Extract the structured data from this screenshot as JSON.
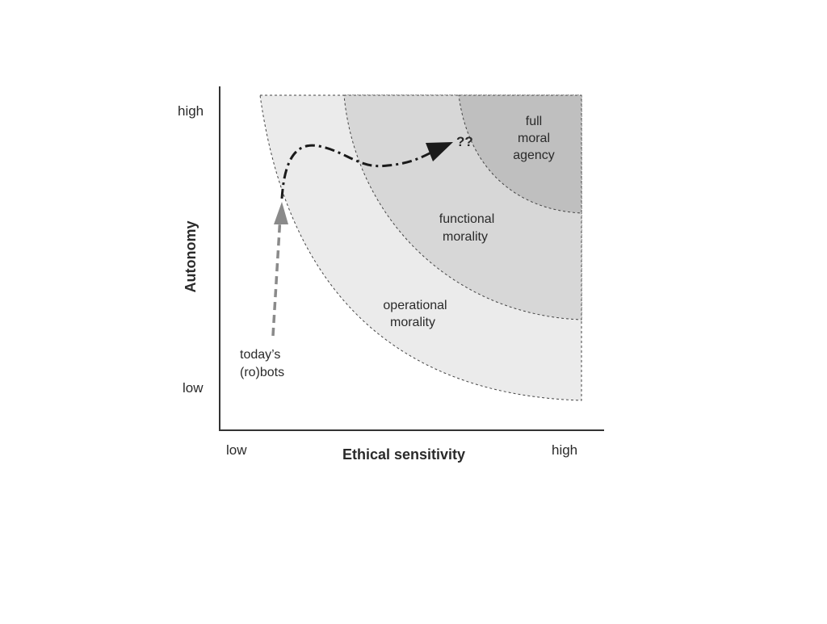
{
  "diagram": {
    "y_axis": {
      "label": "Autonomy",
      "high": "high",
      "low": "low"
    },
    "x_axis": {
      "label": "Ethical sensitivity",
      "low": "low",
      "high": "high"
    },
    "regions": {
      "operational": {
        "line1": "operational",
        "line2": "morality",
        "fill": "#ebebeb"
      },
      "functional": {
        "line1": "functional",
        "line2": "morality",
        "fill": "#d7d7d7"
      },
      "full": {
        "line1": "full",
        "line2": "moral",
        "line3": "agency",
        "fill": "#bfbfbf"
      }
    },
    "start_label": {
      "line1": "today’s",
      "line2": "(ro)bots"
    },
    "unknown_marker": "??",
    "colors": {
      "axis": "#333333",
      "dashed_border": "#444444",
      "arrow_up": "#8a8a8a",
      "arrow_path": "#1a1a1a"
    }
  }
}
